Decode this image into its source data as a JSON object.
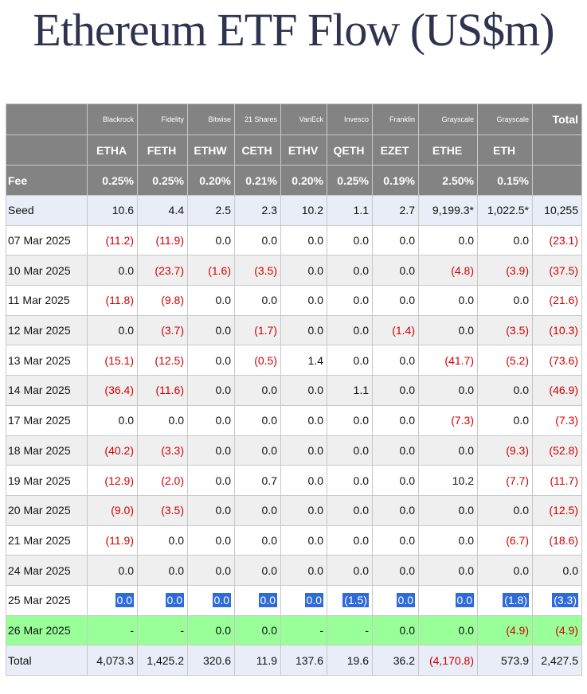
{
  "title": "Ethereum ETF Flow (US$m)",
  "colors": {
    "header_bg": "#838383",
    "negative": "#d10000",
    "highlight_row": "#99ff99",
    "seed_row": "#e8edf7",
    "selection": "#2f6bd8"
  },
  "header": {
    "issuers": [
      "Blackrock",
      "Fidelity",
      "Bitwise",
      "21 Shares",
      "VanEck",
      "Invesco",
      "Franklin",
      "Grayscale",
      "Grayscale"
    ],
    "total_label": "Total",
    "tickers": [
      "ETHA",
      "FETH",
      "ETHW",
      "CETH",
      "ETHV",
      "QETH",
      "EZET",
      "ETHE",
      "ETH"
    ],
    "fee_label": "Fee",
    "fees": [
      "0.25%",
      "0.25%",
      "0.20%",
      "0.21%",
      "0.20%",
      "0.25%",
      "0.19%",
      "2.50%",
      "0.15%"
    ]
  },
  "rows": [
    {
      "label": "Seed",
      "cells": [
        "10.6",
        "4.4",
        "2.5",
        "2.3",
        "10.2",
        "1.1",
        "2.7",
        "9,199.3*",
        "1,022.5*",
        "10,255"
      ]
    },
    {
      "label": "07 Mar 2025",
      "cells": [
        "(11.2)",
        "(11.9)",
        "0.0",
        "0.0",
        "0.0",
        "0.0",
        "0.0",
        "0.0",
        "0.0",
        "(23.1)"
      ]
    },
    {
      "label": "10 Mar 2025",
      "cells": [
        "0.0",
        "(23.7)",
        "(1.6)",
        "(3.5)",
        "0.0",
        "0.0",
        "0.0",
        "(4.8)",
        "(3.9)",
        "(37.5)"
      ]
    },
    {
      "label": "11 Mar 2025",
      "cells": [
        "(11.8)",
        "(9.8)",
        "0.0",
        "0.0",
        "0.0",
        "0.0",
        "0.0",
        "0.0",
        "0.0",
        "(21.6)"
      ]
    },
    {
      "label": "12 Mar 2025",
      "cells": [
        "0.0",
        "(3.7)",
        "0.0",
        "(1.7)",
        "0.0",
        "0.0",
        "(1.4)",
        "0.0",
        "(3.5)",
        "(10.3)"
      ]
    },
    {
      "label": "13 Mar 2025",
      "cells": [
        "(15.1)",
        "(12.5)",
        "0.0",
        "(0.5)",
        "1.4",
        "0.0",
        "0.0",
        "(41.7)",
        "(5.2)",
        "(73.6)"
      ]
    },
    {
      "label": "14 Mar 2025",
      "cells": [
        "(36.4)",
        "(11.6)",
        "0.0",
        "0.0",
        "0.0",
        "1.1",
        "0.0",
        "0.0",
        "0.0",
        "(46.9)"
      ]
    },
    {
      "label": "17 Mar 2025",
      "cells": [
        "0.0",
        "0.0",
        "0.0",
        "0.0",
        "0.0",
        "0.0",
        "0.0",
        "(7.3)",
        "0.0",
        "(7.3)"
      ]
    },
    {
      "label": "18 Mar 2025",
      "cells": [
        "(40.2)",
        "(3.3)",
        "0.0",
        "0.0",
        "0.0",
        "0.0",
        "0.0",
        "0.0",
        "(9.3)",
        "(52.8)"
      ]
    },
    {
      "label": "19 Mar 2025",
      "cells": [
        "(12.9)",
        "(2.0)",
        "0.0",
        "0.7",
        "0.0",
        "0.0",
        "0.0",
        "10.2",
        "(7.7)",
        "(11.7)"
      ]
    },
    {
      "label": "20 Mar 2025",
      "cells": [
        "(9.0)",
        "(3.5)",
        "0.0",
        "0.0",
        "0.0",
        "0.0",
        "0.0",
        "0.0",
        "0.0",
        "(12.5)"
      ]
    },
    {
      "label": "21 Mar 2025",
      "cells": [
        "(11.9)",
        "0.0",
        "0.0",
        "0.0",
        "0.0",
        "0.0",
        "0.0",
        "0.0",
        "(6.7)",
        "(18.6)"
      ]
    },
    {
      "label": "24 Mar 2025",
      "cells": [
        "0.0",
        "0.0",
        "0.0",
        "0.0",
        "0.0",
        "0.0",
        "0.0",
        "0.0",
        "0.0",
        "0.0"
      ]
    },
    {
      "label": "25 Mar 2025",
      "cells": [
        "0.0",
        "0.0",
        "0.0",
        "0.0",
        "0.0",
        "(1.5)",
        "0.0",
        "0.0",
        "(1.8)",
        "(3.3)"
      ]
    },
    {
      "label": "26 Mar 2025",
      "cells": [
        "-",
        "-",
        "0.0",
        "0.0",
        "-",
        "-",
        "0.0",
        "0.0",
        "(4.9)",
        "(4.9)"
      ]
    },
    {
      "label": "Total",
      "cells": [
        "4,073.3",
        "1,425.2",
        "320.6",
        "11.9",
        "137.6",
        "19.6",
        "36.2",
        "(4,170.8)",
        "573.9",
        "2,427.5"
      ]
    }
  ]
}
